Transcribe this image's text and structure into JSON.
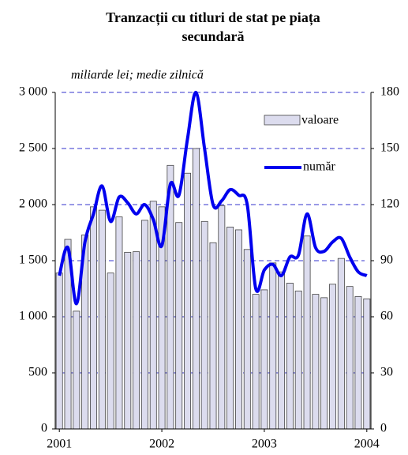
{
  "chart_data": {
    "type": "bar_line",
    "title": "Tranzacții cu titluri de stat pe piața secundară",
    "subtitle": "miliarde lei; medie zilnică",
    "x": [
      2001,
      2001.0833,
      2001.1667,
      2001.25,
      2001.3333,
      2001.4167,
      2001.5,
      2001.5833,
      2001.6667,
      2001.75,
      2001.8333,
      2001.9167,
      2002,
      2002.0833,
      2002.1667,
      2002.25,
      2002.3333,
      2002.4167,
      2002.5,
      2002.5833,
      2002.6667,
      2002.75,
      2002.8333,
      2002.9167,
      2003,
      2003.0833,
      2003.1667,
      2003.25,
      2003.3333,
      2003.4167,
      2003.5,
      2003.5833,
      2003.6667,
      2003.75,
      2003.8333,
      2003.9167,
      2004
    ],
    "series": [
      {
        "name": "valoare",
        "color": "#dcdcee",
        "values": [
          1390,
          1690,
          1050,
          1730,
          1980,
          1950,
          1390,
          1890,
          1575,
          1580,
          1860,
          2030,
          1980,
          2350,
          1840,
          2280,
          2500,
          1850,
          1660,
          1990,
          1800,
          1775,
          1600,
          1200,
          1240,
          1480,
          1400,
          1300,
          1230,
          1720,
          1200,
          1170,
          1290,
          1520,
          1270,
          1180,
          1160
        ]
      },
      {
        "name": "număr",
        "color": "#0000ee",
        "axis": "y2",
        "values": [
          82,
          97,
          67,
          100,
          115,
          130,
          111,
          124,
          121,
          115,
          120,
          112,
          98,
          131,
          125,
          155,
          180,
          150,
          120,
          122,
          128,
          125,
          120,
          75,
          85,
          88,
          82,
          92,
          93,
          115,
          97,
          95,
          100,
          102,
          92,
          84,
          82
        ]
      }
    ],
    "xlim": [
      2000.96,
      2004.04
    ],
    "xticks": [
      2001,
      2002,
      2003,
      2004
    ],
    "ylim": [
      0,
      3000
    ],
    "yticks": [
      0,
      500,
      {
        "value": 1000,
        "label": "1 000"
      },
      {
        "value": 1500,
        "label": "1 500"
      },
      {
        "value": 2000,
        "label": "2 000"
      },
      {
        "value": 2500,
        "label": "2 500"
      },
      {
        "value": 3000,
        "label": "3 000"
      }
    ],
    "y2lim": [
      0,
      180
    ],
    "y2ticks": [
      0,
      30,
      60,
      90,
      120,
      150,
      180
    ],
    "grid": true
  }
}
